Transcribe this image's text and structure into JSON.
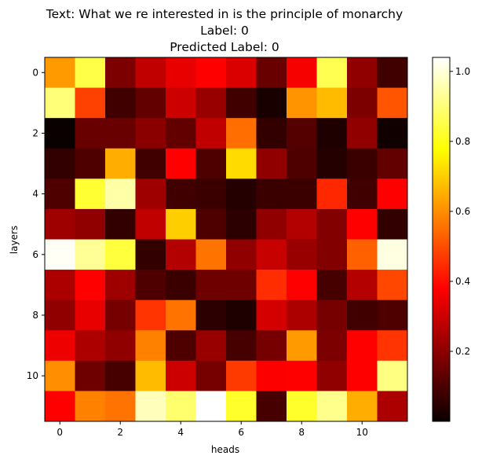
{
  "chart_data": {
    "type": "heatmap",
    "title_lines": [
      "Text: What we re interested in is the principle of monarchy",
      "Label: 0",
      "Predicted Label: 0"
    ],
    "xlabel": "heads",
    "ylabel": "layers",
    "x_ticks": [
      0,
      2,
      4,
      6,
      8,
      10
    ],
    "y_ticks": [
      0,
      2,
      4,
      6,
      8,
      10
    ],
    "rows": 12,
    "cols": 12,
    "colormap": "hot",
    "vmin": 0.0,
    "vmax": 1.04,
    "colorbar_ticks": [
      0.2,
      0.4,
      0.6,
      0.8,
      1.0
    ],
    "values": [
      [
        0.62,
        0.85,
        0.17,
        0.27,
        0.33,
        0.37,
        0.31,
        0.14,
        0.35,
        0.86,
        0.2,
        0.08
      ],
      [
        0.9,
        0.48,
        0.08,
        0.13,
        0.29,
        0.21,
        0.08,
        0.02,
        0.61,
        0.67,
        0.17,
        0.51
      ],
      [
        0.0,
        0.14,
        0.14,
        0.19,
        0.13,
        0.27,
        0.55,
        0.06,
        0.11,
        0.03,
        0.2,
        0.01
      ],
      [
        0.06,
        0.1,
        0.65,
        0.08,
        0.38,
        0.1,
        0.72,
        0.2,
        0.1,
        0.04,
        0.07,
        0.13
      ],
      [
        0.1,
        0.83,
        0.95,
        0.22,
        0.08,
        0.07,
        0.04,
        0.07,
        0.07,
        0.44,
        0.08,
        0.37
      ],
      [
        0.22,
        0.2,
        0.06,
        0.27,
        0.7,
        0.1,
        0.05,
        0.2,
        0.25,
        0.18,
        0.37,
        0.06
      ],
      [
        1.03,
        0.93,
        0.84,
        0.06,
        0.25,
        0.56,
        0.2,
        0.28,
        0.21,
        0.18,
        0.53,
        1.01
      ],
      [
        0.24,
        0.37,
        0.22,
        0.1,
        0.07,
        0.15,
        0.15,
        0.45,
        0.37,
        0.09,
        0.25,
        0.49
      ],
      [
        0.2,
        0.33,
        0.16,
        0.46,
        0.56,
        0.05,
        0.03,
        0.3,
        0.24,
        0.16,
        0.08,
        0.1
      ],
      [
        0.34,
        0.24,
        0.2,
        0.58,
        0.1,
        0.21,
        0.09,
        0.16,
        0.62,
        0.17,
        0.37,
        0.46
      ],
      [
        0.6,
        0.15,
        0.09,
        0.67,
        0.29,
        0.16,
        0.47,
        0.36,
        0.37,
        0.2,
        0.38,
        0.91
      ],
      [
        0.37,
        0.58,
        0.56,
        0.97,
        0.89,
        1.04,
        0.82,
        0.09,
        0.82,
        0.92,
        0.65,
        0.24
      ]
    ]
  }
}
